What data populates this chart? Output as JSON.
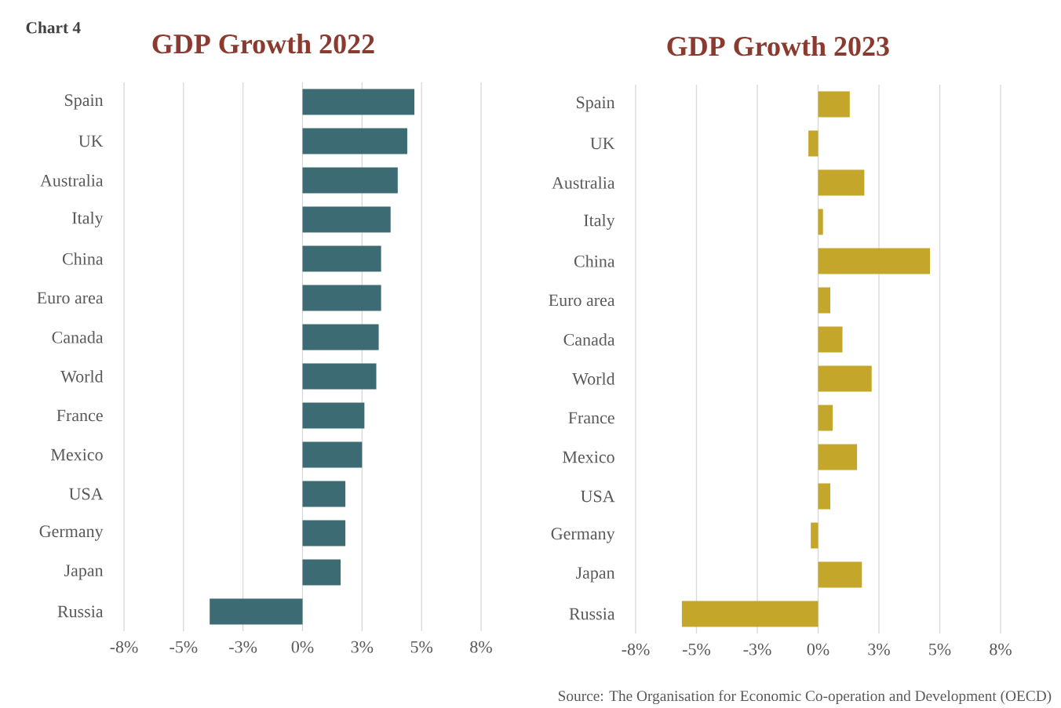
{
  "chart_data": [
    {
      "type": "bar",
      "orientation": "horizontal",
      "title": "GDP Growth 2022",
      "annotations": [
        "Chart 4"
      ],
      "categories": [
        "Spain",
        "UK",
        "Australia",
        "Italy",
        "China",
        "Euro area",
        "Canada",
        "World",
        "France",
        "Mexico",
        "USA",
        "Germany",
        "Japan",
        "Russia"
      ],
      "values": [
        4.7,
        4.4,
        4.0,
        3.7,
        3.3,
        3.3,
        3.2,
        3.1,
        2.6,
        2.5,
        1.8,
        1.8,
        1.6,
        -3.9
      ],
      "color": "#3d6b73",
      "xlim": [
        -7.5,
        7.5
      ],
      "xticks": [
        {
          "value": -7.5,
          "label": "-8%"
        },
        {
          "value": -5,
          "label": "-5%"
        },
        {
          "value": -2.5,
          "label": "-3%"
        },
        {
          "value": 0,
          "label": "0%"
        },
        {
          "value": 2.5,
          "label": "3%"
        },
        {
          "value": 5,
          "label": "5%"
        },
        {
          "value": 7.5,
          "label": "8%"
        }
      ],
      "grid": "x"
    },
    {
      "type": "bar",
      "orientation": "horizontal",
      "title": "GDP Growth 2023",
      "annotations": [
        "Source: The Organisation for Economic Co-operation and Development (OECD)"
      ],
      "categories": [
        "Spain",
        "UK",
        "Australia",
        "Italy",
        "China",
        "Euro area",
        "Canada",
        "World",
        "France",
        "Mexico",
        "USA",
        "Germany",
        "Japan",
        "Russia"
      ],
      "values": [
        1.3,
        -0.4,
        1.9,
        0.2,
        4.6,
        0.5,
        1.0,
        2.2,
        0.6,
        1.6,
        0.5,
        -0.3,
        1.8,
        -5.6
      ],
      "color": "#c4a62a",
      "xlim": [
        -7.5,
        7.5
      ],
      "xticks": [
        {
          "value": -7.5,
          "label": "-8%"
        },
        {
          "value": -5,
          "label": "-5%"
        },
        {
          "value": -2.5,
          "label": "-3%"
        },
        {
          "value": 0,
          "label": "0%"
        },
        {
          "value": 2.5,
          "label": "3%"
        },
        {
          "value": 5,
          "label": "5%"
        },
        {
          "value": 7.5,
          "label": "8%"
        }
      ],
      "grid": "x"
    }
  ]
}
